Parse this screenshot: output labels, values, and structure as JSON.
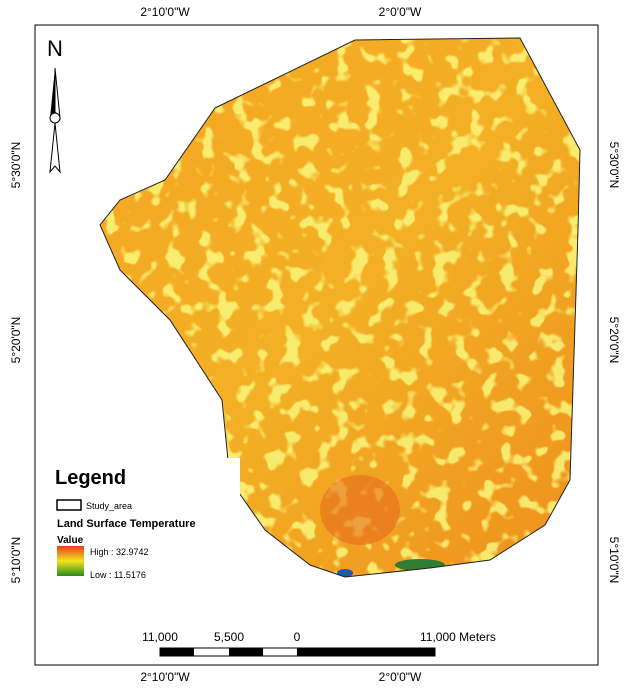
{
  "graticule": {
    "top": [
      "2°10'0\"W",
      "2°0'0\"W"
    ],
    "bottom": [
      "2°10'0\"W",
      "2°0'0\"W"
    ],
    "left": [
      "5°30'0\"N",
      "5°20'0\"N",
      "5°10'0\"N"
    ],
    "right": [
      "5°30'0\"N",
      "5°20'0\"N",
      "5°10'0\"N"
    ]
  },
  "north_arrow": "N",
  "legend": {
    "title": "Legend",
    "study_area": "Study_area",
    "layer": "Land Surface Temperature",
    "field": "Value",
    "high": "High : 32.9742",
    "low": "Low : 11.5176"
  },
  "scale_bar": {
    "labels": [
      "11,000",
      "5,500",
      "0",
      "11,000 Meters"
    ]
  }
}
